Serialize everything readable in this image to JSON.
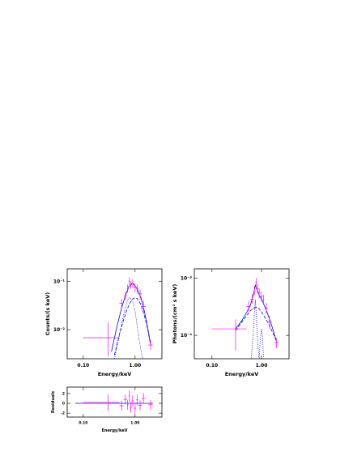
{
  "chart_data": [
    {
      "type": "errorbar",
      "xlabel": "Energy/keV",
      "ylabel": "Counts/(s keV)",
      "xscale": "log",
      "yscale": "log",
      "xlim": [
        0.049,
        3.3
      ],
      "ylim": [
        0.0025,
        0.18
      ],
      "xticks": [
        {
          "value": 0.1,
          "label": "0.10"
        },
        {
          "value": 1,
          "label": "1.00"
        }
      ],
      "yticks": [
        {
          "value": 0.1,
          "label": "10⁻¹"
        },
        {
          "value": 0.01,
          "label": "10⁻²"
        }
      ],
      "data": {
        "color": "#ff00ff",
        "x": [
          0.3,
          0.55,
          0.65,
          0.72,
          0.78,
          0.83,
          0.9,
          1.0,
          1.1,
          1.25,
          1.45,
          2.0
        ],
        "xlow": [
          0.1,
          0.5,
          0.6,
          0.7,
          0.75,
          0.8,
          0.87,
          0.95,
          1.05,
          1.15,
          1.35,
          1.8
        ],
        "xhigh": [
          0.5,
          0.6,
          0.7,
          0.75,
          0.8,
          0.87,
          0.95,
          1.05,
          1.15,
          1.35,
          1.6,
          2.2
        ],
        "values": [
          0.0068,
          0.035,
          0.05,
          0.07,
          0.1,
          0.085,
          0.09,
          0.075,
          0.07,
          0.055,
          0.03,
          0.0048
        ],
        "ylow": [
          0.0028,
          0.028,
          0.04,
          0.058,
          0.085,
          0.07,
          0.075,
          0.06,
          0.055,
          0.042,
          0.022,
          0.0038
        ],
        "yhigh": [
          0.014,
          0.043,
          0.06,
          0.085,
          0.12,
          0.1,
          0.11,
          0.09,
          0.085,
          0.068,
          0.04,
          0.006
        ]
      },
      "models": [
        {
          "color": "#0000ff",
          "style": "solid",
          "x": [
            0.35,
            0.45,
            0.55,
            0.65,
            0.75,
            0.85,
            0.95,
            1.1,
            1.3,
            1.5,
            1.7,
            2.0
          ],
          "values": [
            0.0035,
            0.012,
            0.028,
            0.05,
            0.075,
            0.09,
            0.085,
            0.07,
            0.045,
            0.025,
            0.013,
            0.005
          ]
        },
        {
          "color": "#0000ff",
          "style": "dashed",
          "x": [
            0.4,
            0.5,
            0.6,
            0.7,
            0.8,
            0.9,
            1.0,
            1.1,
            1.3,
            1.5,
            1.7,
            2.0
          ],
          "values": [
            0.003,
            0.008,
            0.016,
            0.026,
            0.036,
            0.043,
            0.046,
            0.044,
            0.033,
            0.02,
            0.012,
            0.0048
          ]
        },
        {
          "color": "#0000ff",
          "style": "dotted",
          "x": [
            0.4,
            0.5,
            0.6,
            0.7,
            0.75,
            0.8,
            0.9,
            1.0,
            1.1,
            1.2,
            1.4
          ],
          "values": [
            0.0025,
            0.008,
            0.02,
            0.038,
            0.045,
            0.046,
            0.038,
            0.024,
            0.012,
            0.006,
            0.0025
          ]
        }
      ]
    },
    {
      "type": "errorbar",
      "xlabel": "Energy/keV",
      "ylabel": "Photons/(cm² s keV)",
      "xscale": "log",
      "yscale": "log",
      "xlim": [
        0.044,
        3.6
      ],
      "ylim": [
        3.9e-05,
        0.00145
      ],
      "xticks": [
        {
          "value": 0.1,
          "label": "0.10"
        },
        {
          "value": 1,
          "label": "1.00"
        }
      ],
      "yticks": [
        {
          "value": 0.001,
          "label": "10⁻³"
        },
        {
          "value": 0.0001,
          "label": "10⁻⁴"
        }
      ],
      "data": {
        "color": "#ff00ff",
        "x": [
          0.3,
          0.55,
          0.65,
          0.72,
          0.78,
          0.83,
          0.9,
          1.0,
          1.1,
          1.25,
          1.45,
          2.0
        ],
        "xlow": [
          0.1,
          0.5,
          0.6,
          0.7,
          0.75,
          0.8,
          0.87,
          0.95,
          1.05,
          1.15,
          1.35,
          1.8
        ],
        "xhigh": [
          0.5,
          0.6,
          0.7,
          0.75,
          0.8,
          0.87,
          0.95,
          1.05,
          1.15,
          1.35,
          1.6,
          2.2
        ],
        "values": [
          0.00013,
          0.00032,
          0.00043,
          0.0006,
          0.00085,
          0.00065,
          0.00055,
          0.00048,
          0.00042,
          0.0003,
          0.00017,
          7.5e-05
        ],
        "ylow": [
          5.5e-05,
          0.00026,
          0.00036,
          0.0005,
          0.00072,
          0.00055,
          0.00045,
          0.00039,
          0.00034,
          0.00024,
          0.00013,
          6e-05
        ],
        "yhigh": [
          0.00019,
          0.0004,
          0.00052,
          0.00072,
          0.001,
          0.00078,
          0.00066,
          0.00058,
          0.00051,
          0.00037,
          0.00022,
          9e-05
        ]
      },
      "models": [
        {
          "color": "#0000ff",
          "style": "solid",
          "x": [
            0.3,
            0.4,
            0.5,
            0.6,
            0.7,
            0.75,
            0.8,
            0.9,
            1.0,
            1.2,
            1.5,
            2.0
          ],
          "values": [
            0.00013,
            0.00018,
            0.00025,
            0.00034,
            0.00055,
            0.00075,
            0.00065,
            0.0005,
            0.00043,
            0.0003,
            0.00018,
            8e-05
          ]
        },
        {
          "color": "#0000ff",
          "style": "dashed",
          "x": [
            0.3,
            0.4,
            0.5,
            0.6,
            0.7,
            0.8,
            0.9,
            1.0,
            1.2,
            1.5,
            2.0
          ],
          "values": [
            0.00012,
            0.00017,
            0.00022,
            0.00027,
            0.0003,
            0.00031,
            0.00029,
            0.00026,
            0.0002,
            0.00014,
            8e-05
          ]
        },
        {
          "color": "#0000ff",
          "style": "dotted",
          "x": [
            0.62,
            0.68,
            0.72,
            0.75,
            0.78,
            0.82,
            0.88
          ],
          "values": [
            4e-05,
            0.0001,
            0.00025,
            0.00042,
            0.00025,
            0.0001,
            4e-05
          ]
        },
        {
          "color": "#0000ff",
          "style": "dotted",
          "x": [
            0.9,
            0.95,
            1.0,
            1.05,
            1.1
          ],
          "values": [
            4e-05,
            9e-05,
            0.00013,
            9e-05,
            4e-05
          ]
        }
      ]
    },
    {
      "type": "errorbar",
      "xlabel": "Energy/keV",
      "ylabel": "Residuals",
      "xscale": "log",
      "yscale": "linear",
      "xlim": [
        0.049,
        3.3
      ],
      "ylim": [
        -2.8,
        3.3
      ],
      "xticks": [
        {
          "value": 0.1,
          "label": "0.10"
        },
        {
          "value": 1,
          "label": "1.00"
        }
      ],
      "yticks": [
        2,
        0,
        -2
      ],
      "data": {
        "color": "#ff00ff",
        "x": [
          0.3,
          0.55,
          0.65,
          0.72,
          0.78,
          0.83,
          0.9,
          1.0,
          1.1,
          1.25,
          1.45,
          2.0
        ],
        "xlow": [
          0.1,
          0.5,
          0.6,
          0.7,
          0.75,
          0.8,
          0.87,
          0.95,
          1.05,
          1.15,
          1.35,
          1.8
        ],
        "xhigh": [
          0.5,
          0.6,
          0.7,
          0.75,
          0.8,
          0.87,
          0.95,
          1.05,
          1.15,
          1.35,
          1.6,
          2.2
        ],
        "values": [
          0.2,
          -0.5,
          0.8,
          -0.3,
          1.5,
          -0.8,
          0.5,
          -1.0,
          0.7,
          -0.4,
          1.0,
          -0.3
        ],
        "ylow": [
          -1.5,
          -1.5,
          -0.2,
          -1.3,
          0.3,
          -1.9,
          -0.6,
          -2.1,
          -0.4,
          -1.4,
          -0.1,
          -1.3
        ],
        "yhigh": [
          1.8,
          0.5,
          1.8,
          0.7,
          2.7,
          0.3,
          1.6,
          0.1,
          1.8,
          0.6,
          2.1,
          0.7
        ]
      },
      "models": [
        {
          "color": "#0000ff",
          "style": "solid",
          "x": [
            0.07,
            2.2
          ],
          "values": [
            0,
            0
          ]
        }
      ]
    }
  ]
}
